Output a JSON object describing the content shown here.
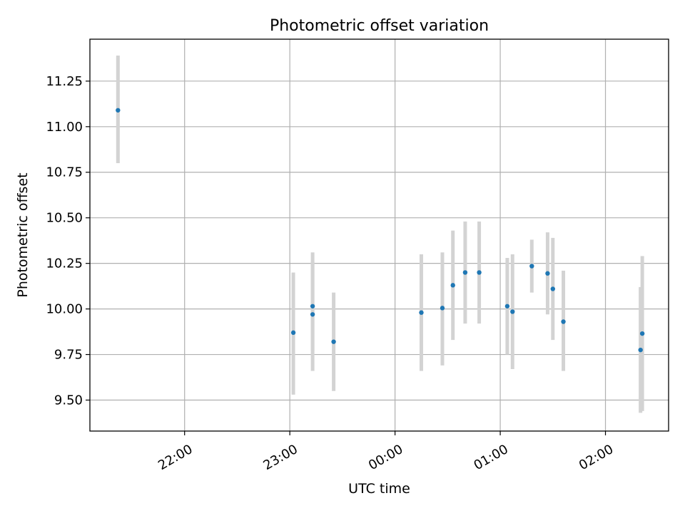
{
  "chart_data": {
    "type": "scatter",
    "title": "Photometric offset variation",
    "xlabel": "UTC time",
    "ylabel": "Photometric offset",
    "x_axis": {
      "kind": "time",
      "range": [
        "21:06",
        "02:36"
      ],
      "ticks": [
        {
          "time": "22:00",
          "label": "22:00"
        },
        {
          "time": "23:00",
          "label": "23:00"
        },
        {
          "time": "00:00",
          "label": "00:00"
        },
        {
          "time": "01:00",
          "label": "01:00"
        },
        {
          "time": "02:00",
          "label": "02:00"
        }
      ]
    },
    "y_axis": {
      "range": [
        9.33,
        11.48
      ],
      "ticks": [
        9.5,
        9.75,
        10.0,
        10.25,
        10.5,
        10.75,
        11.0,
        11.25
      ],
      "tick_labels": [
        "9.50",
        "9.75",
        "10.00",
        "10.25",
        "10.50",
        "10.75",
        "11.00",
        "11.25"
      ]
    },
    "grid": true,
    "colors": {
      "point": "#1f77b4",
      "errorbar": "#d3d3d3",
      "grid": "#b0b0b0"
    },
    "points": [
      {
        "time": "21:22",
        "y": 11.09,
        "ylow": 10.8,
        "yhigh": 11.39
      },
      {
        "time": "23:02",
        "y": 9.87,
        "ylow": 9.53,
        "yhigh": 10.2
      },
      {
        "time": "23:13",
        "y": 10.015,
        "ylow": 9.77,
        "yhigh": 10.26
      },
      {
        "time": "23:13",
        "y": 9.97,
        "ylow": 9.66,
        "yhigh": 10.31
      },
      {
        "time": "23:25",
        "y": 9.82,
        "ylow": 9.55,
        "yhigh": 10.09
      },
      {
        "time": "00:15",
        "y": 9.98,
        "ylow": 9.66,
        "yhigh": 10.3
      },
      {
        "time": "00:27",
        "y": 10.005,
        "ylow": 9.69,
        "yhigh": 10.31
      },
      {
        "time": "00:33",
        "y": 10.13,
        "ylow": 9.83,
        "yhigh": 10.43
      },
      {
        "time": "00:40",
        "y": 10.2,
        "ylow": 9.92,
        "yhigh": 10.48
      },
      {
        "time": "00:48",
        "y": 10.2,
        "ylow": 9.92,
        "yhigh": 10.48
      },
      {
        "time": "01:04",
        "y": 10.015,
        "ylow": 9.75,
        "yhigh": 10.28
      },
      {
        "time": "01:07",
        "y": 9.985,
        "ylow": 9.67,
        "yhigh": 10.3
      },
      {
        "time": "01:18",
        "y": 10.235,
        "ylow": 10.09,
        "yhigh": 10.38
      },
      {
        "time": "01:27",
        "y": 10.195,
        "ylow": 9.97,
        "yhigh": 10.42
      },
      {
        "time": "01:30",
        "y": 10.11,
        "ylow": 9.83,
        "yhigh": 10.39
      },
      {
        "time": "01:36",
        "y": 9.93,
        "ylow": 9.66,
        "yhigh": 10.21
      },
      {
        "time": "02:20",
        "y": 9.775,
        "ylow": 9.43,
        "yhigh": 10.12
      },
      {
        "time": "02:21",
        "y": 9.865,
        "ylow": 9.44,
        "yhigh": 10.29
      }
    ]
  }
}
